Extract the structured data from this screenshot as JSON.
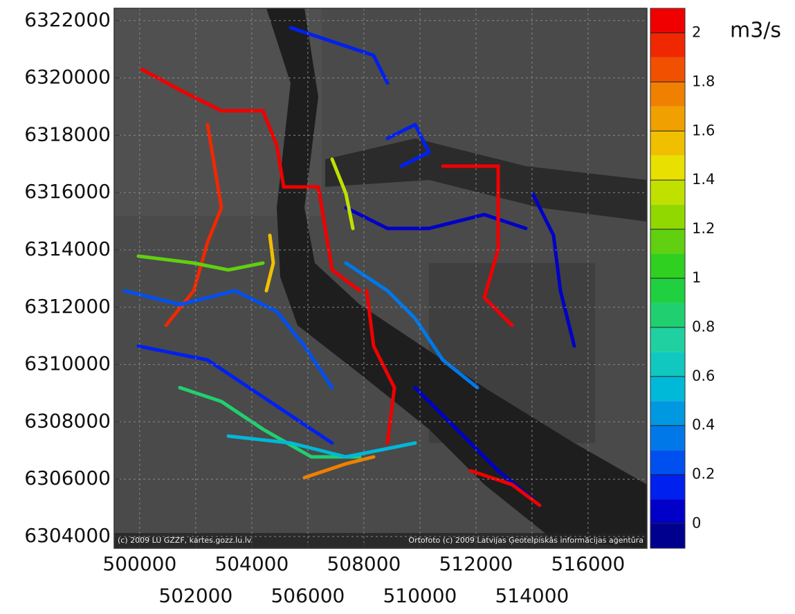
{
  "map": {
    "xlim": [
      499090,
      518100
    ],
    "ylim": [
      6303590,
      6322430
    ],
    "xticks": [
      500000,
      502000,
      504000,
      506000,
      508000,
      510000,
      512000,
      514000,
      516000
    ],
    "yticks": [
      6304000,
      6306000,
      6308000,
      6310000,
      6312000,
      6314000,
      6316000,
      6318000,
      6320000,
      6322000
    ],
    "grid": true,
    "attribution": [
      "(c) 2009 LU GZZF, kartes.gozz.lu.lv",
      "Ortofoto (c) 2009 Latvijas Ģeotelpiskās informācijas aģentūra"
    ]
  },
  "colorbar": {
    "unit": "m3/s",
    "lim": [
      -0.1,
      2.1
    ],
    "ticks": [
      0,
      0.2,
      0.4,
      0.6,
      0.8,
      1,
      1.2,
      1.4,
      1.6,
      1.8,
      2
    ],
    "colors": [
      "#00008f",
      "#0000c8",
      "#0020f0",
      "#0050f0",
      "#0078e8",
      "#0098e0",
      "#00b8d8",
      "#10c8c0",
      "#20d0a0",
      "#20d070",
      "#20d040",
      "#30d020",
      "#60d010",
      "#90d800",
      "#c0e000",
      "#e8e000",
      "#f0c000",
      "#f0a000",
      "#f08000",
      "#f05000",
      "#f02800",
      "#f00000"
    ]
  }
}
